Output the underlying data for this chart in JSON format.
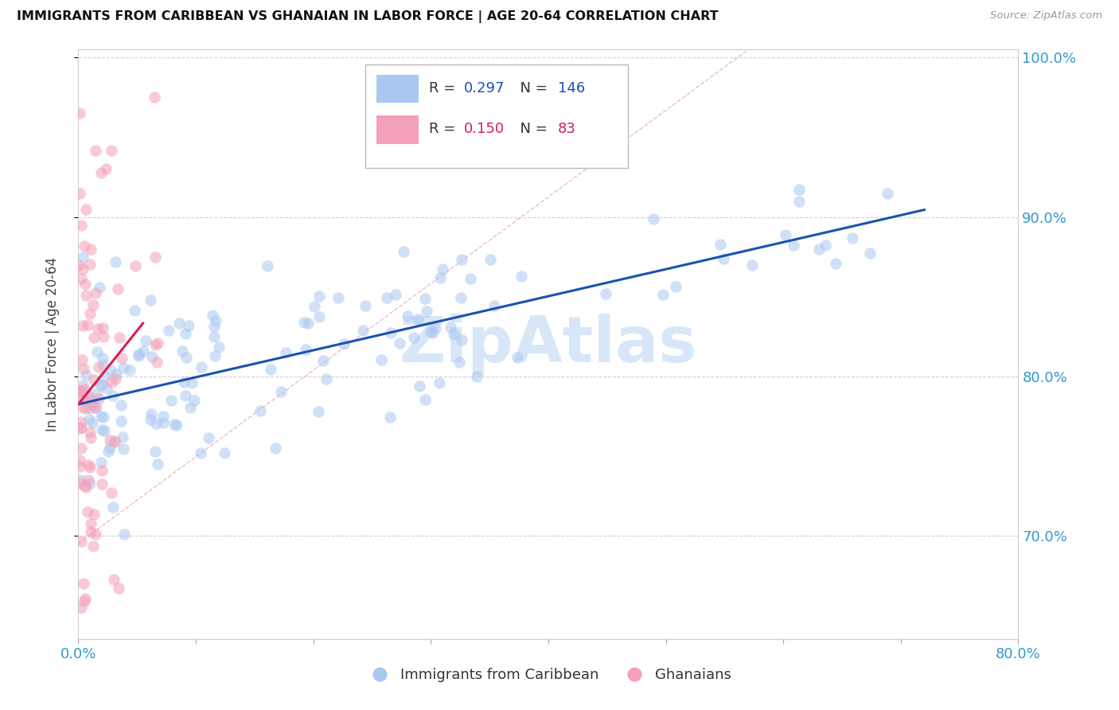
{
  "title": "IMMIGRANTS FROM CARIBBEAN VS GHANAIAN IN LABOR FORCE | AGE 20-64 CORRELATION CHART",
  "source": "Source: ZipAtlas.com",
  "ylabel": "In Labor Force | Age 20-64",
  "R_caribbean": 0.297,
  "N_caribbean": 146,
  "R_ghanaian": 0.15,
  "N_ghanaian": 83,
  "xmin": 0.0,
  "xmax": 0.8,
  "ymin": 0.635,
  "ymax": 1.005,
  "yticks": [
    0.7,
    0.8,
    0.9,
    1.0
  ],
  "ytick_labels": [
    "70.0%",
    "80.0%",
    "90.0%",
    "100.0%"
  ],
  "color_caribbean": "#aac8f0",
  "color_ghanaian": "#f4a0b8",
  "line_color_caribbean": "#1a52b0",
  "line_color_ghanaian": "#d42050",
  "diag_line_color": "#e8b0c0",
  "axis_tick_color": "#3399cc",
  "watermark": "ZipAtlas",
  "watermark_color": "#c8ddf5",
  "background_color": "#ffffff",
  "grid_color": "#cccccc"
}
